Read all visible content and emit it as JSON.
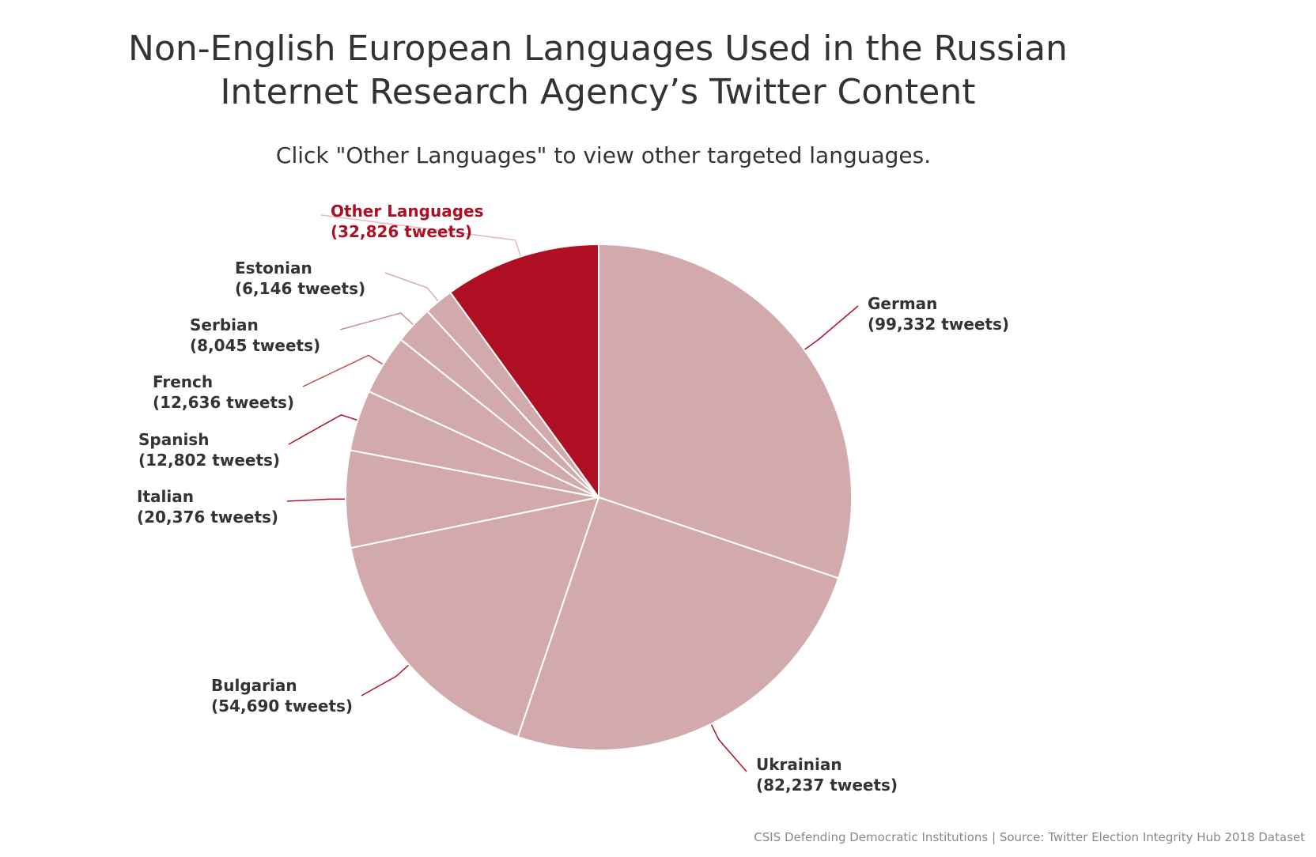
{
  "chart_data": {
    "type": "pie",
    "title": [
      "Non-English European Languages Used in the Russian",
      "Internet Research Agency’s Twitter Content"
    ],
    "subtitle": "Click \"Other Languages\" to view other targeted languages.",
    "unit_suffix": " tweets",
    "slices": [
      {
        "name": "German",
        "value": 99332,
        "value_label": "(99,332 tweets)",
        "color": "#d2aaac",
        "label_color": "#333333",
        "connector_color": "#b0122a"
      },
      {
        "name": "Ukrainian",
        "value": 82237,
        "value_label": "(82,237 tweets)",
        "color": "#d2aaac",
        "label_color": "#333333",
        "connector_color": "#b0122a"
      },
      {
        "name": "Bulgarian",
        "value": 54690,
        "value_label": "(54,690 tweets)",
        "color": "#d2aaac",
        "label_color": "#333333",
        "connector_color": "#b0122a"
      },
      {
        "name": "Italian",
        "value": 20376,
        "value_label": "(20,376 tweets)",
        "color": "#d2aaac",
        "label_color": "#333333",
        "connector_color": "#b0122a"
      },
      {
        "name": "Spanish",
        "value": 12802,
        "value_label": "(12,802 tweets)",
        "color": "#d2aaac",
        "label_color": "#333333",
        "connector_color": "#b0122a"
      },
      {
        "name": "French",
        "value": 12636,
        "value_label": "(12,636 tweets)",
        "color": "#d2aaac",
        "label_color": "#333333",
        "connector_color": "#c8484e"
      },
      {
        "name": "Serbian",
        "value": 8045,
        "value_label": "(8,045 tweets)",
        "color": "#d2aaac",
        "label_color": "#333333",
        "connector_color": "#d08c90"
      },
      {
        "name": "Estonian",
        "value": 6146,
        "value_label": "(6,146 tweets)",
        "color": "#d2aaac",
        "label_color": "#333333",
        "connector_color": "#d8a8aa"
      },
      {
        "name": "Other Languages",
        "value": 32826,
        "value_label": "(32,826 tweets)",
        "color": "#ae0f22",
        "label_color": "#ae0f22",
        "connector_color": "#e0bcbe",
        "drilldown": true
      }
    ],
    "credits": "CSIS Defending Democratic Institutions | Source: Twitter Election Integrity Hub 2018 Dataset"
  }
}
